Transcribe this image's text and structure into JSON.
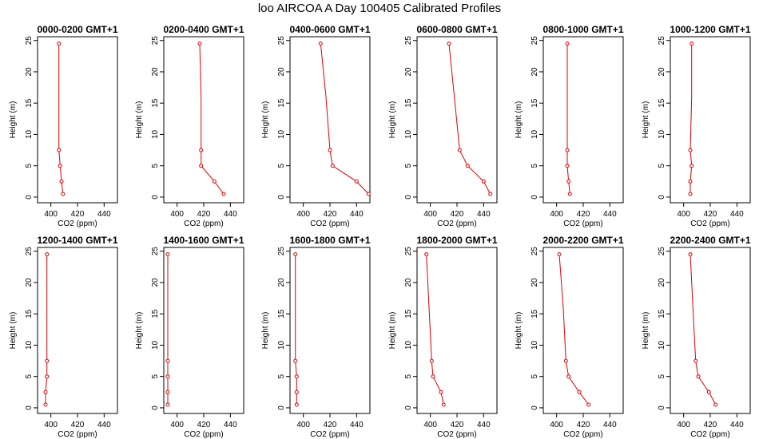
{
  "title": "loo AIRCOA A  Day 100405  Calibrated Profiles",
  "chart_data": {
    "type": "line",
    "xlabel": "CO2 (ppm)",
    "ylabel": "Height (m)",
    "xlim": [
      390,
      450
    ],
    "ylim": [
      0,
      25
    ],
    "xticks": [
      400,
      420,
      440
    ],
    "yticks": [
      0,
      5,
      10,
      15,
      20,
      25
    ],
    "line_color": "#e00000",
    "panels": [
      {
        "title": "0000-0200 GMT+1",
        "points": [
          {
            "co2": 406,
            "h": 24.5
          },
          {
            "co2": 406,
            "h": 16
          },
          {
            "co2": 406,
            "h": 7.5
          },
          {
            "co2": 407,
            "h": 5
          },
          {
            "co2": 408,
            "h": 2.5
          },
          {
            "co2": 409,
            "h": 0.5
          }
        ]
      },
      {
        "title": "0200-0400 GMT+1",
        "points": [
          {
            "co2": 417,
            "h": 24.5
          },
          {
            "co2": 418,
            "h": 16
          },
          {
            "co2": 418,
            "h": 7.5
          },
          {
            "co2": 418,
            "h": 5
          },
          {
            "co2": 428,
            "h": 2.5
          },
          {
            "co2": 435,
            "h": 0.5
          }
        ]
      },
      {
        "title": "0400-0600 GMT+1",
        "points": [
          {
            "co2": 413,
            "h": 24.5
          },
          {
            "co2": 417,
            "h": 16
          },
          {
            "co2": 420,
            "h": 7.5
          },
          {
            "co2": 422,
            "h": 5
          },
          {
            "co2": 440,
            "h": 2.5
          },
          {
            "co2": 449,
            "h": 0.5
          }
        ]
      },
      {
        "title": "0600-0800 GMT+1",
        "points": [
          {
            "co2": 414,
            "h": 24.5
          },
          {
            "co2": 418,
            "h": 16
          },
          {
            "co2": 422,
            "h": 7.5
          },
          {
            "co2": 428,
            "h": 5
          },
          {
            "co2": 440,
            "h": 2.5
          },
          {
            "co2": 445,
            "h": 0.5
          }
        ]
      },
      {
        "title": "0800-1000 GMT+1",
        "points": [
          {
            "co2": 408,
            "h": 24.5
          },
          {
            "co2": 408,
            "h": 16
          },
          {
            "co2": 408,
            "h": 7.5
          },
          {
            "co2": 408,
            "h": 5
          },
          {
            "co2": 409,
            "h": 2.5
          },
          {
            "co2": 410,
            "h": 0.5
          }
        ]
      },
      {
        "title": "1000-1200 GMT+1",
        "points": [
          {
            "co2": 406,
            "h": 24.5
          },
          {
            "co2": 406,
            "h": 16
          },
          {
            "co2": 405,
            "h": 7.5
          },
          {
            "co2": 406,
            "h": 5
          },
          {
            "co2": 405,
            "h": 2.5
          },
          {
            "co2": 405,
            "h": 0.5
          }
        ]
      },
      {
        "title": "1200-1400 GMT+1",
        "points": [
          {
            "co2": 397,
            "h": 24.5
          },
          {
            "co2": 397,
            "h": 16
          },
          {
            "co2": 397,
            "h": 7.5
          },
          {
            "co2": 397,
            "h": 5
          },
          {
            "co2": 396,
            "h": 2.5
          },
          {
            "co2": 396,
            "h": 0.5
          }
        ]
      },
      {
        "title": "1400-1600 GMT+1",
        "points": [
          {
            "co2": 393,
            "h": 24.5
          },
          {
            "co2": 393,
            "h": 16
          },
          {
            "co2": 393,
            "h": 7.5
          },
          {
            "co2": 393,
            "h": 5
          },
          {
            "co2": 393,
            "h": 2.5
          },
          {
            "co2": 393,
            "h": 0.5
          }
        ]
      },
      {
        "title": "1600-1800 GMT+1",
        "points": [
          {
            "co2": 394,
            "h": 24.5
          },
          {
            "co2": 394,
            "h": 16
          },
          {
            "co2": 394,
            "h": 7.5
          },
          {
            "co2": 395,
            "h": 5
          },
          {
            "co2": 395,
            "h": 2.5
          },
          {
            "co2": 395,
            "h": 0.5
          }
        ]
      },
      {
        "title": "1800-2000 GMT+1",
        "points": [
          {
            "co2": 397,
            "h": 24.5
          },
          {
            "co2": 399,
            "h": 16
          },
          {
            "co2": 401,
            "h": 7.5
          },
          {
            "co2": 402,
            "h": 5
          },
          {
            "co2": 408,
            "h": 2.5
          },
          {
            "co2": 410,
            "h": 0.5
          }
        ]
      },
      {
        "title": "2000-2200 GMT+1",
        "points": [
          {
            "co2": 402,
            "h": 24.5
          },
          {
            "co2": 405,
            "h": 16
          },
          {
            "co2": 407,
            "h": 7.5
          },
          {
            "co2": 409,
            "h": 5
          },
          {
            "co2": 417,
            "h": 2.5
          },
          {
            "co2": 424,
            "h": 0.5
          }
        ]
      },
      {
        "title": "2200-2400 GMT+1",
        "points": [
          {
            "co2": 405,
            "h": 24.5
          },
          {
            "co2": 407,
            "h": 16
          },
          {
            "co2": 409,
            "h": 7.5
          },
          {
            "co2": 411,
            "h": 5
          },
          {
            "co2": 419,
            "h": 2.5
          },
          {
            "co2": 424,
            "h": 0.5
          }
        ]
      }
    ]
  }
}
